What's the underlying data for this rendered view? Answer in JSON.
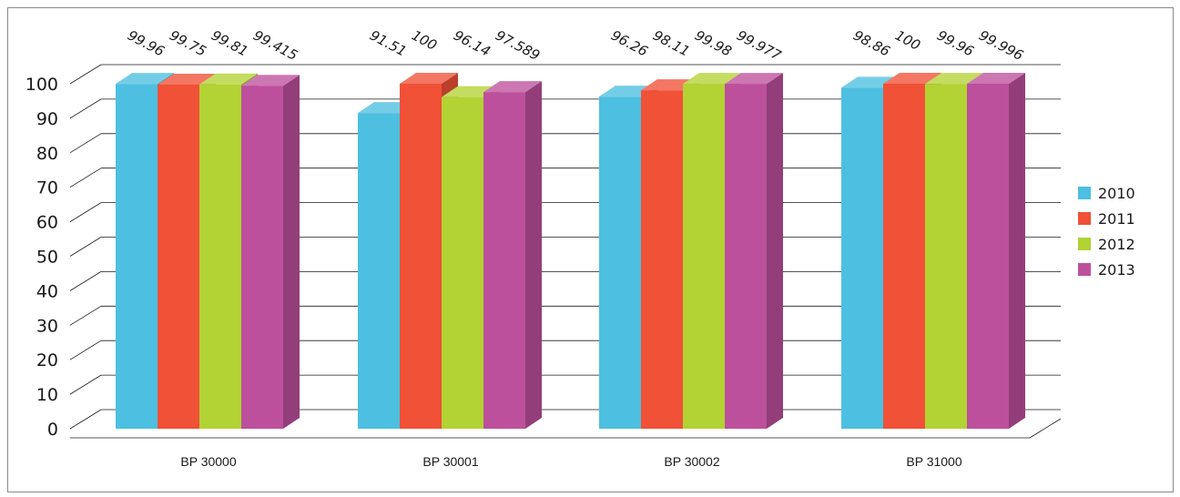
{
  "chart_data": {
    "type": "bar",
    "style": "3d-clustered-column",
    "categories": [
      "BP 30000",
      "BP 30001",
      "BP 30002",
      "BP 31000"
    ],
    "series": [
      {
        "name": "2010",
        "color": "#4dbfe0",
        "values": [
          99.96,
          91.51,
          96.26,
          98.86
        ],
        "labels": [
          "99.96",
          "91.51",
          "96.26",
          "98.86"
        ]
      },
      {
        "name": "2011",
        "color": "#f05137",
        "values": [
          99.75,
          100,
          98.11,
          100
        ],
        "labels": [
          "99.75",
          "100",
          "98.11",
          "100"
        ]
      },
      {
        "name": "2012",
        "color": "#b3d233",
        "values": [
          99.81,
          96.14,
          99.98,
          99.96
        ],
        "labels": [
          "99.81",
          "96.14",
          "99.98",
          "99.96"
        ]
      },
      {
        "name": "2013",
        "color": "#bd509c",
        "values": [
          99.415,
          97.589,
          99.977,
          99.996
        ],
        "labels": [
          "99.415",
          "97.589",
          "99.977",
          "99.996"
        ]
      }
    ],
    "ylim": [
      0,
      100
    ],
    "yticks": [
      "0",
      "10",
      "20",
      "30",
      "40",
      "50",
      "60",
      "70",
      "80",
      "90",
      "100"
    ],
    "grid": true,
    "legend_position": "right",
    "title": "",
    "xlabel": "",
    "ylabel": ""
  }
}
